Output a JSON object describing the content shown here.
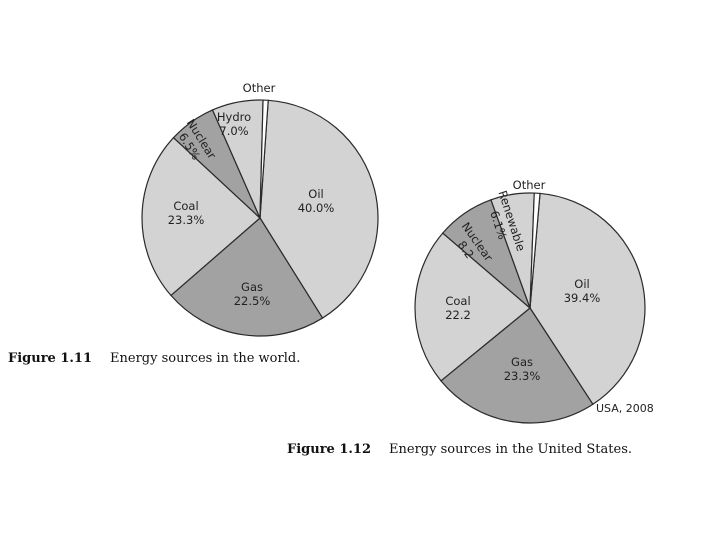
{
  "chart_data": [
    {
      "type": "pie",
      "title": "",
      "slices": [
        {
          "label": "Oil",
          "value_text": "40.0%",
          "value": 40.0,
          "color": "#d3d3d3"
        },
        {
          "label": "Gas",
          "value_text": "22.5%",
          "value": 22.5,
          "color": "#a2a2a2"
        },
        {
          "label": "Coal",
          "value_text": "23.3%",
          "value": 23.3,
          "color": "#d3d3d3"
        },
        {
          "label": "Nuclear",
          "value_text": "6.5%",
          "value": 6.5,
          "color": "#a2a2a2"
        },
        {
          "label": "Hydro",
          "value_text": "7.0%",
          "value": 7.0,
          "color": "#d3d3d3"
        },
        {
          "label": "Other",
          "value_text": "",
          "value": 0.7,
          "color": "#ffffff"
        }
      ],
      "caption": {
        "number": "Figure 1.11",
        "text": "Energy sources in the world."
      }
    },
    {
      "type": "pie",
      "title": "",
      "slices": [
        {
          "label": "Oil",
          "value_text": "39.4%",
          "value": 39.4,
          "color": "#d3d3d3"
        },
        {
          "label": "Gas",
          "value_text": "23.3%",
          "value": 23.3,
          "color": "#a2a2a2"
        },
        {
          "label": "Coal",
          "value_text": "22.2",
          "value": 22.2,
          "color": "#d3d3d3"
        },
        {
          "label": "Nuclear",
          "value_text": "8.2",
          "value": 8.2,
          "color": "#a2a2a2"
        },
        {
          "label": "Renewable",
          "value_text": "6.1%",
          "value": 6.1,
          "color": "#d3d3d3"
        },
        {
          "label": "Other",
          "value_text": "",
          "value": 0.8,
          "color": "#ffffff"
        }
      ],
      "note": "USA, 2008",
      "caption": {
        "number": "Figure 1.12",
        "text": "Energy sources in the United States."
      }
    }
  ]
}
